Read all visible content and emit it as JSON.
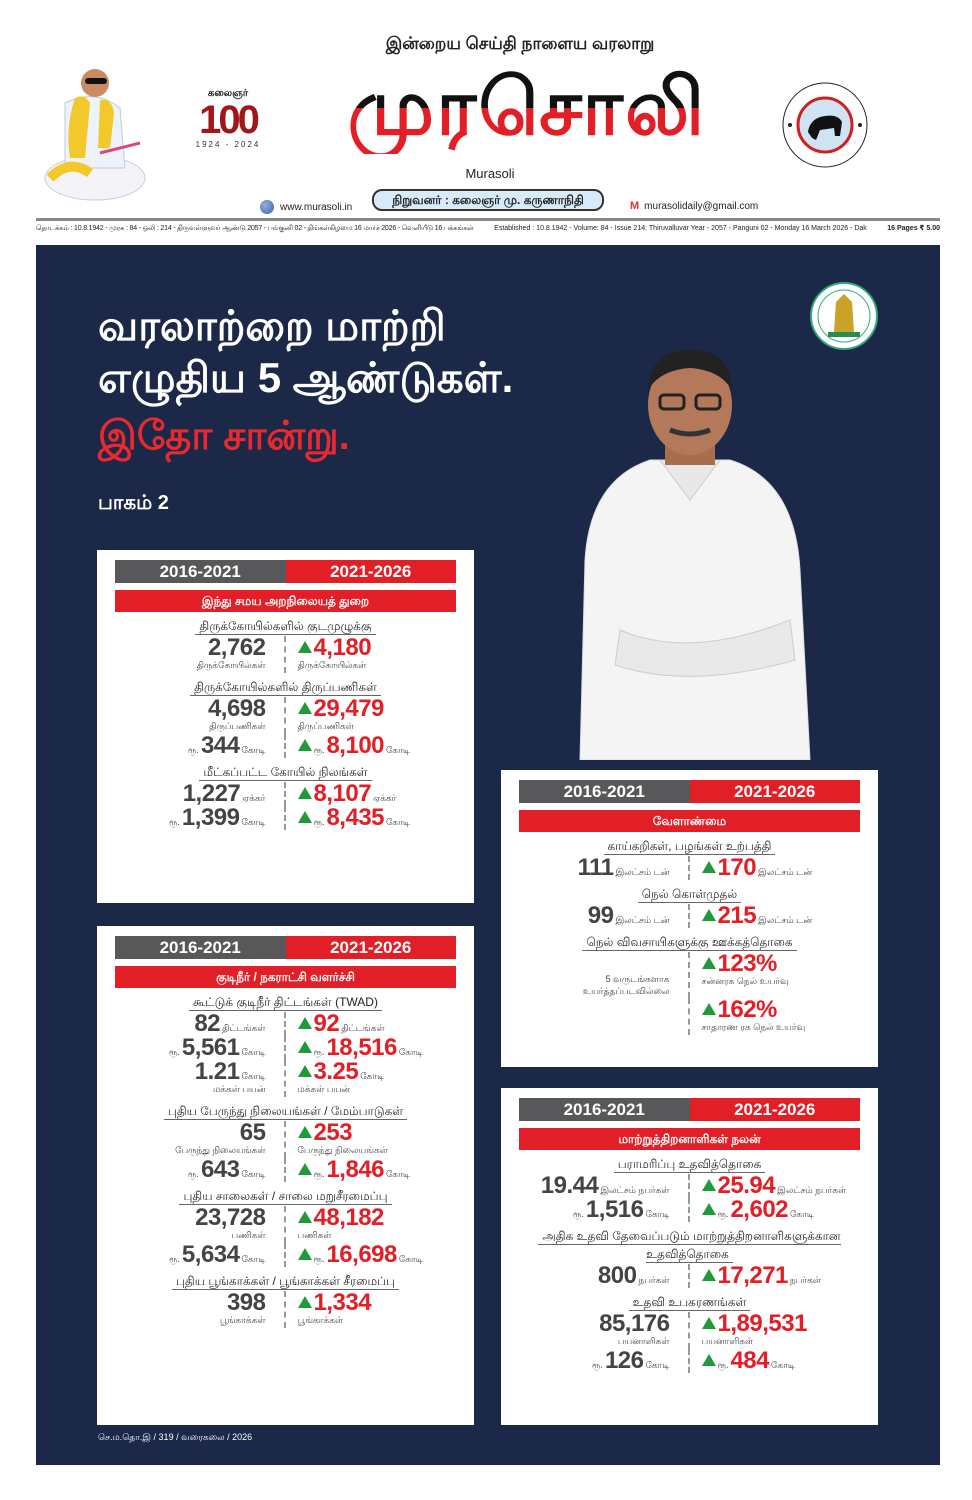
{
  "header": {
    "tagline": "இன்றைய செய்தி நாளைய வரலாறு",
    "masthead": "முரசொலி",
    "masthead_en": "Murasoli",
    "founder": "நிறுவனர் : கலைஞர் மு. கருணாநிதி",
    "website": "www.murasoli.in",
    "email": "murasolidaily@gmail.com",
    "centenary": {
      "name": "கலைஞர்",
      "number": "100",
      "years": "1924 - 2024"
    },
    "strip_tamil": "தொடக்கம் : 10.8.1942 - முரசு : 84 - ஒலி : 214 - திருவள்ளுவர் ஆண்டு 2057 - பங்குனி 02 - திங்கள்கிழமை 16 மார்ச் 2026 - வெளியீடு  16 பக்கங்கள்",
    "strip_english": "Established : 10.8.1942 - Volume: 84 - Issue 214: Thiruvalluvar Year - 2057 - Panguni 02 - Monday 16 March 2026 - Dak",
    "price": "16 Pages ₹ 5.00"
  },
  "feature": {
    "headline_1": "வரலாற்றை மாற்றி",
    "headline_2": "எழுதிய 5 ஆண்டுகள்.",
    "headline_red": "இதோ சான்று.",
    "part": "பாகம் 2",
    "credit": "செ.ம.தொ.இ / 319 / வரைகலை / 2026",
    "colors": {
      "navy": "#1c2848",
      "red": "#e21f26",
      "grey": "#58585a",
      "up_arrow": "#1e9a3a"
    }
  },
  "period_old": "2016-2021",
  "period_new": "2021-2026",
  "cards": [
    {
      "category": "இந்து சமய அறநிலையத் துறை",
      "sections": [
        {
          "heading": "திருக்கோயில்களில் குடமுழுக்கு",
          "rows": [
            {
              "old": {
                "pre": "",
                "num": "2,762",
                "unit": "",
                "sub": "திருக்கோயில்கள்"
              },
              "new": {
                "pre": "",
                "num": "4,180",
                "unit": "",
                "sub": "திருக்கோயில்கள்"
              }
            }
          ]
        },
        {
          "heading": "திருக்கோயில்களில் திருப்பணிகள்",
          "rows": [
            {
              "old": {
                "pre": "",
                "num": "4,698",
                "unit": "",
                "sub": "திருப்பணிகள்"
              },
              "new": {
                "pre": "",
                "num": "29,479",
                "unit": "",
                "sub": "திருப்பணிகள்"
              }
            },
            {
              "old": {
                "pre": "ரூ.",
                "num": "344",
                "unit": "கோடி",
                "sub": ""
              },
              "new": {
                "pre": "ரூ.",
                "num": "8,100",
                "unit": "கோடி",
                "sub": ""
              }
            }
          ]
        },
        {
          "heading": "மீட்கப்பட்ட கோயில் நிலங்கள்",
          "rows": [
            {
              "old": {
                "pre": "",
                "num": "1,227",
                "unit": "ஏக்கர்",
                "sub": ""
              },
              "new": {
                "pre": "",
                "num": "8,107",
                "unit": "ஏக்கர்",
                "sub": ""
              }
            },
            {
              "old": {
                "pre": "ரூ.",
                "num": "1,399",
                "unit": "கோடி",
                "sub": ""
              },
              "new": {
                "pre": "ரூ.",
                "num": "8,435",
                "unit": "கோடி",
                "sub": ""
              }
            }
          ]
        }
      ]
    },
    {
      "category": "குடிநீர் / நகராட்சி வளர்ச்சி",
      "sections": [
        {
          "heading": "கூட்டுக் குடிநீர் திட்டங்கள் (TWAD)",
          "rows": [
            {
              "old": {
                "pre": "",
                "num": "82",
                "unit": "திட்டங்கள்",
                "sub": ""
              },
              "new": {
                "pre": "",
                "num": "92",
                "unit": "திட்டங்கள்",
                "sub": ""
              }
            },
            {
              "old": {
                "pre": "ரூ.",
                "num": "5,561",
                "unit": "கோடி",
                "sub": ""
              },
              "new": {
                "pre": "ரூ.",
                "num": "18,516",
                "unit": "கோடி",
                "sub": ""
              }
            },
            {
              "old": {
                "pre": "",
                "num": "1.21",
                "unit": "கோடி",
                "sub": "மக்கள் பயன்"
              },
              "new": {
                "pre": "",
                "num": "3.25",
                "unit": "கோடி",
                "sub": "மக்கள் பயன்"
              }
            }
          ]
        },
        {
          "heading": "புதிய பேருந்து நிலையங்கள் / மேம்பாடுகள்",
          "rows": [
            {
              "old": {
                "pre": "",
                "num": "65",
                "unit": "",
                "sub": "பேருந்து நிலையங்கள்"
              },
              "new": {
                "pre": "",
                "num": "253",
                "unit": "",
                "sub": "பேருந்து நிலையங்கள்"
              }
            },
            {
              "old": {
                "pre": "ரூ.",
                "num": "643",
                "unit": "கோடி",
                "sub": ""
              },
              "new": {
                "pre": "ரூ.",
                "num": "1,846",
                "unit": "கோடி",
                "sub": ""
              }
            }
          ]
        },
        {
          "heading": "புதிய சாலைகள் / சாலை மறுசீரமைப்பு",
          "rows": [
            {
              "old": {
                "pre": "",
                "num": "23,728",
                "unit": "",
                "sub": "பணிகள்"
              },
              "new": {
                "pre": "",
                "num": "48,182",
                "unit": "",
                "sub": "பணிகள்"
              }
            },
            {
              "old": {
                "pre": "ரூ.",
                "num": "5,634",
                "unit": "கோடி",
                "sub": ""
              },
              "new": {
                "pre": "ரூ.",
                "num": "16,698",
                "unit": "கோடி",
                "sub": ""
              }
            }
          ]
        },
        {
          "heading": "புதிய பூங்காக்கள் / பூங்காக்கள் சீரமைப்பு",
          "rows": [
            {
              "old": {
                "pre": "",
                "num": "398",
                "unit": "",
                "sub": "பூங்காக்கள்"
              },
              "new": {
                "pre": "",
                "num": "1,334",
                "unit": "",
                "sub": "பூங்காக்கள்"
              }
            }
          ]
        }
      ]
    },
    {
      "category": "வேளாண்மை",
      "sections": [
        {
          "heading": "காய்கறிகள், பழங்கள் உற்பத்தி",
          "rows": [
            {
              "old": {
                "pre": "",
                "num": "111",
                "unit": "இலட்சம் டன்",
                "sub": ""
              },
              "new": {
                "pre": "",
                "num": "170",
                "unit": "இலட்சம் டன்",
                "sub": ""
              }
            }
          ]
        },
        {
          "heading": "நெல் கொள்முதல்",
          "rows": [
            {
              "old": {
                "pre": "",
                "num": "99",
                "unit": "இலட்சம் டன்",
                "sub": ""
              },
              "new": {
                "pre": "",
                "num": "215",
                "unit": "இலட்சம் டன்",
                "sub": ""
              }
            }
          ]
        },
        {
          "heading": "நெல் விவசாயிகளுக்கு ஊக்கத்தொகை",
          "note": "5 வருடங்களாக உயர்த்தப்படவில்லை",
          "rows": [
            {
              "new": {
                "pre": "",
                "num": "123%",
                "unit": "",
                "sub": "சன்னரக நெல் உயர்வு"
              }
            },
            {
              "new": {
                "pre": "",
                "num": "162%",
                "unit": "",
                "sub": "சாதாரண ரக நெல் உயர்வு"
              }
            }
          ]
        }
      ]
    },
    {
      "category": "மாற்றுத்திறனாளிகள் நலன்",
      "sections": [
        {
          "heading": "பராமரிப்பு உதவித்தொகை",
          "rows": [
            {
              "old": {
                "pre": "",
                "num": "19.44",
                "unit": "இலட்சம் நபர்கள்",
                "sub": ""
              },
              "new": {
                "pre": "",
                "num": "25.94",
                "unit": "இலட்சம் நபர்கள்",
                "sub": ""
              }
            },
            {
              "old": {
                "pre": "ரூ.",
                "num": "1,516",
                "unit": "கோடி",
                "sub": ""
              },
              "new": {
                "pre": "ரூ.",
                "num": "2,602",
                "unit": "கோடி",
                "sub": ""
              }
            }
          ]
        },
        {
          "heading": "அதிக உதவி தேவைப்படும் மாற்றுத்திறனாளிகளுக்கான உதவித்தொகை",
          "rows": [
            {
              "old": {
                "pre": "",
                "num": "800",
                "unit": "நபர்கள்",
                "sub": ""
              },
              "new": {
                "pre": "",
                "num": "17,271",
                "unit": "நபர்கள்",
                "sub": ""
              }
            }
          ]
        },
        {
          "heading": "உதவி உபகரணங்கள்",
          "rows": [
            {
              "old": {
                "pre": "",
                "num": "85,176",
                "unit": "",
                "sub": "பயனாளிகள்"
              },
              "new": {
                "pre": "",
                "num": "1,89,531",
                "unit": "",
                "sub": "பயனாளிகள்"
              }
            },
            {
              "old": {
                "pre": "ரூ.",
                "num": "126",
                "unit": "கோடி",
                "sub": ""
              },
              "new": {
                "pre": "ரூ.",
                "num": "484",
                "unit": "கோடி",
                "sub": ""
              }
            }
          ]
        }
      ]
    }
  ]
}
